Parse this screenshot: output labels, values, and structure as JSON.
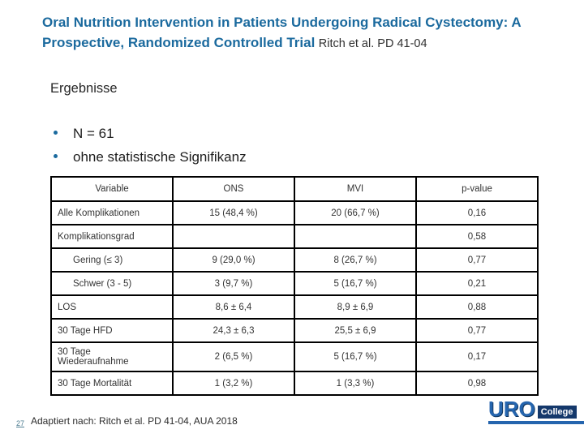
{
  "slide": {
    "title_main": "Oral Nutrition Intervention in Patients Undergoing Radical Cystectomy: A Prospective, Randomized Controlled Trial",
    "title_attribution": "Ritch et al. PD 41-04",
    "section_heading": "Ergebnisse",
    "bullets": [
      "N = 61",
      "ohne statistische Signifikanz"
    ],
    "page_number": "27",
    "footer_note": "Adaptiert nach: Ritch et al. PD 41-04, AUA 2018"
  },
  "chart_data": {
    "type": "table",
    "headers": [
      "Variable",
      "ONS",
      "MVI",
      "p-value"
    ],
    "rows": [
      {
        "variable": "Alle Komplikationen",
        "ons": "15 (48,4 %)",
        "mvi": "20 (66,7 %)",
        "p_value": "0,16"
      },
      {
        "variable": "Komplikationsgrad",
        "ons": "",
        "mvi": "",
        "p_value": "0,58"
      },
      {
        "variable": "Gering (≤ 3)",
        "ons": "9 (29,0 %)",
        "mvi": "8 (26,7 %)",
        "p_value": "0,77"
      },
      {
        "variable": "Schwer (3 - 5)",
        "ons": "3 (9,7 %)",
        "mvi": "5 (16,7 %)",
        "p_value": "0,21"
      },
      {
        "variable": "LOS",
        "ons": "8,6 ± 6,4",
        "mvi": "8,9 ± 6,9",
        "p_value": "0,88"
      },
      {
        "variable": "30 Tage HFD",
        "ons": "24,3 ± 6,3",
        "mvi": "25,5 ± 6,9",
        "p_value": "0,77"
      },
      {
        "variable": "30 Tage Wiederaufnahme",
        "ons": "2 (6,5 %)",
        "mvi": "5 (16,7 %)",
        "p_value": "0,17"
      },
      {
        "variable": "30 Tage Mortalität",
        "ons": "1 (3,2 %)",
        "mvi": "1 (3,3 %)",
        "p_value": "0,98"
      }
    ]
  },
  "logo": {
    "primary": "URO",
    "secondary": "College"
  },
  "colors": {
    "title_blue": "#1b6a9e",
    "logo_blue": "#2565ae",
    "logo_navy": "#14386b",
    "table_border": "#000000"
  }
}
